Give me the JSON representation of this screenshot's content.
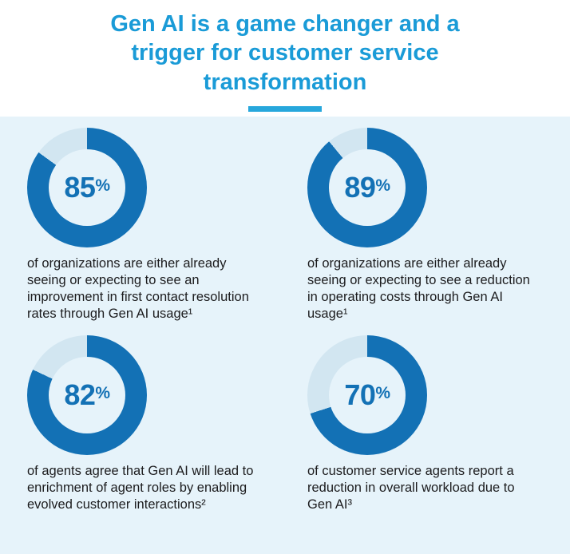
{
  "colors": {
    "title_blue": "#1a9bd7",
    "underline_blue": "#27a7dc",
    "donut_fill": "#1371b5",
    "donut_rest": "#d2e6f1",
    "section_bg": "#e6f3fa",
    "percent_blue": "#1371b5",
    "text_dark": "#1c1c1e"
  },
  "header": {
    "title": "Gen AI is a game changer and a trigger for customer service transformation"
  },
  "stats": [
    {
      "label": "85",
      "suffix": "%",
      "value": 85,
      "description": "of organizations are either already seeing or expecting to see an improvement in first contact resolution rates through Gen AI usage¹"
    },
    {
      "label": "89",
      "suffix": "%",
      "value": 89,
      "description": "of organizations are either already seeing or expecting to see a reduction in operating costs through Gen AI usage¹"
    },
    {
      "label": "82",
      "suffix": "%",
      "value": 82,
      "description": "of agents agree that Gen AI will lead to enrichment of agent roles by enabling evolved customer interactions²"
    },
    {
      "label": "70",
      "suffix": "%",
      "value": 70,
      "description": "of customer service agents report a reduction in overall workload due to Gen AI³"
    }
  ],
  "chart_data": [
    {
      "type": "pie",
      "subtype": "donut",
      "values": [
        85,
        15
      ],
      "center_label": "85%",
      "caption": "of organizations are either already seeing or expecting to see an improvement in first contact resolution rates through Gen AI usage¹",
      "colors": [
        "#1371b5",
        "#d2e6f1"
      ],
      "start_angle_deg": 0,
      "direction": "clockwise"
    },
    {
      "type": "pie",
      "subtype": "donut",
      "values": [
        89,
        11
      ],
      "center_label": "89%",
      "caption": "of organizations are either already seeing or expecting to see a reduction in operating costs through Gen AI usage¹",
      "colors": [
        "#1371b5",
        "#d2e6f1"
      ],
      "start_angle_deg": 0,
      "direction": "clockwise"
    },
    {
      "type": "pie",
      "subtype": "donut",
      "values": [
        82,
        18
      ],
      "center_label": "82%",
      "caption": "of agents agree that Gen AI will lead to enrichment of agent roles by enabling evolved customer interactions²",
      "colors": [
        "#1371b5",
        "#d2e6f1"
      ],
      "start_angle_deg": 0,
      "direction": "clockwise"
    },
    {
      "type": "pie",
      "subtype": "donut",
      "values": [
        70,
        30
      ],
      "center_label": "70%",
      "caption": "of customer service agents report a reduction in overall workload due to Gen AI³",
      "colors": [
        "#1371b5",
        "#d2e6f1"
      ],
      "start_angle_deg": 0,
      "direction": "clockwise"
    }
  ]
}
